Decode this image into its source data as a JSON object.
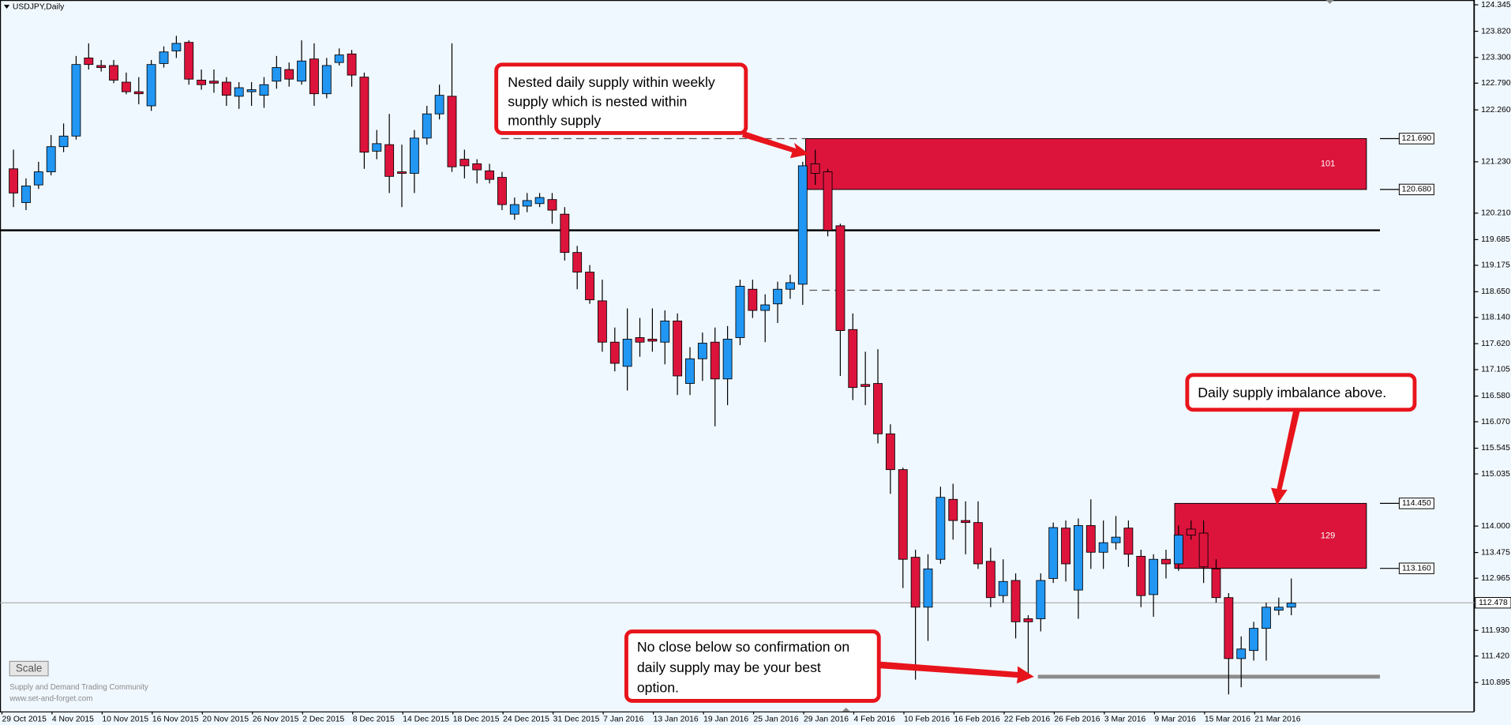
{
  "chart_data": {
    "type": "candlestick",
    "title": "USDJPY,Daily",
    "up_color": "#2196f3",
    "down_color": "#dc143c",
    "categories": [
      "29 Oct 2015",
      null,
      null,
      null,
      "4 Nov 2015",
      null,
      null,
      null,
      "10 Nov 2015",
      null,
      null,
      null,
      "16 Nov 2015",
      null,
      null,
      null,
      "20 Nov 2015",
      null,
      null,
      null,
      "26 Nov 2015",
      null,
      null,
      null,
      "2 Dec 2015",
      null,
      null,
      null,
      "8 Dec 2015",
      null,
      null,
      null,
      "14 Dec 2015",
      null,
      null,
      null,
      "18 Dec 2015",
      null,
      null,
      null,
      "24 Dec 2015",
      null,
      null,
      null,
      "31 Dec 2015",
      null,
      null,
      null,
      "7 Jan 2016",
      null,
      null,
      null,
      "13 Jan 2016",
      null,
      null,
      null,
      "19 Jan 2016",
      null,
      null,
      null,
      "25 Jan 2016",
      null,
      null,
      null,
      "29 Jan 2016",
      null,
      null,
      null,
      "4 Feb 2016",
      null,
      null,
      null,
      "10 Feb 2016",
      null,
      null,
      null,
      "16 Feb 2016",
      null,
      null,
      null,
      "22 Feb 2016",
      null,
      null,
      null,
      "26 Feb 2016",
      null,
      null,
      null,
      "3 Mar 2016",
      null,
      null,
      null,
      "9 Mar 2016",
      null,
      null,
      null,
      "15 Mar 2016",
      null,
      null,
      null,
      "21 Mar 2016",
      null,
      null
    ],
    "open": [
      121.09,
      120.42,
      120.77,
      121.03,
      121.53,
      121.74,
      123.29,
      123.14,
      123.14,
      122.81,
      122.62,
      122.34,
      123.18,
      123.43,
      123.6,
      122.85,
      122.83,
      122.81,
      122.53,
      122.62,
      122.55,
      122.83,
      123.06,
      122.83,
      123.27,
      122.58,
      123.2,
      123.37,
      122.91,
      121.44,
      121.57,
      121.03,
      121.0,
      121.7,
      122.18,
      122.53,
      121.28,
      121.19,
      121.05,
      120.92,
      120.19,
      120.35,
      120.4,
      120.48,
      120.19,
      119.43,
      119.04,
      118.47,
      117.65,
      117.17,
      117.74,
      117.71,
      117.65,
      118.07,
      116.83,
      117.32,
      117.65,
      116.92,
      117.74,
      118.7,
      118.28,
      118.41,
      118.7,
      118.8,
      121.19,
      121.03,
      119.96,
      117.9,
      116.81,
      116.83,
      115.83,
      115.12,
      113.38,
      112.39,
      113.34,
      114.53,
      114.11,
      114.07,
      113.3,
      112.62,
      112.92,
      112.16,
      112.16,
      112.96,
      113.96,
      112.73,
      114.01,
      113.48,
      113.67,
      113.96,
      113.4,
      112.64,
      113.34,
      113.25,
      113.94,
      113.86,
      113.15,
      112.58,
      111.37,
      111.53,
      111.97,
      112.33,
      112.39
    ],
    "high": [
      121.47,
      120.9,
      121.23,
      121.76,
      121.99,
      123.33,
      123.58,
      123.25,
      123.25,
      123.0,
      122.91,
      123.25,
      123.52,
      123.73,
      123.64,
      123.06,
      123.06,
      122.91,
      122.81,
      122.81,
      122.91,
      123.33,
      123.2,
      123.64,
      123.58,
      123.29,
      123.48,
      123.45,
      123.0,
      121.86,
      122.18,
      121.57,
      121.86,
      122.34,
      122.76,
      123.58,
      121.47,
      121.28,
      121.19,
      121.03,
      120.52,
      120.61,
      120.61,
      120.61,
      120.33,
      119.56,
      119.18,
      118.89,
      117.94,
      118.32,
      118.13,
      118.32,
      118.28,
      118.22,
      117.55,
      117.84,
      117.94,
      117.97,
      118.89,
      118.89,
      118.6,
      118.85,
      118.99,
      121.23,
      121.47,
      121.09,
      120.0,
      118.22,
      117.46,
      117.51,
      116.02,
      115.16,
      113.53,
      113.44,
      114.78,
      114.84,
      114.49,
      114.49,
      113.57,
      113.34,
      113.06,
      112.23,
      113.06,
      114.07,
      114.11,
      114.15,
      114.53,
      114.11,
      114.2,
      114.11,
      113.53,
      113.44,
      113.53,
      114.01,
      114.11,
      114.11,
      113.34,
      112.67,
      111.81,
      112.1,
      112.48,
      112.58,
      112.96
    ],
    "low": [
      120.33,
      120.27,
      120.69,
      120.96,
      121.42,
      121.67,
      123.06,
      123.02,
      122.79,
      122.57,
      122.37,
      122.24,
      123.1,
      123.29,
      122.76,
      122.66,
      122.6,
      122.34,
      122.28,
      122.34,
      122.3,
      122.68,
      122.72,
      122.76,
      122.34,
      122.49,
      123.14,
      122.72,
      121.09,
      121.28,
      120.61,
      120.33,
      120.61,
      121.57,
      122.07,
      121.03,
      120.9,
      120.8,
      120.8,
      120.27,
      120.08,
      120.23,
      120.33,
      120.0,
      119.27,
      118.7,
      118.41,
      117.46,
      117.07,
      116.69,
      117.36,
      117.46,
      117.21,
      116.6,
      116.6,
      116.88,
      115.98,
      116.4,
      117.59,
      118.13,
      117.65,
      118.03,
      118.51,
      118.39,
      120.77,
      119.75,
      116.98,
      116.5,
      116.4,
      115.64,
      114.64,
      112.77,
      110.95,
      111.72,
      113.25,
      113.73,
      113.44,
      113.15,
      112.39,
      112.48,
      111.77,
      111.05,
      111.91,
      112.87,
      112.9,
      112.16,
      113.15,
      113.15,
      113.53,
      113.19,
      112.39,
      112.2,
      112.96,
      113.11,
      113.73,
      112.87,
      112.48,
      110.66,
      110.8,
      111.33,
      111.33,
      112.23,
      112.23
    ],
    "close": [
      120.61,
      120.75,
      121.03,
      121.53,
      121.74,
      123.16,
      123.16,
      123.1,
      122.85,
      122.62,
      122.58,
      123.16,
      123.41,
      123.58,
      122.87,
      122.76,
      122.79,
      122.55,
      122.7,
      122.66,
      122.76,
      123.1,
      122.87,
      123.23,
      122.58,
      123.14,
      123.35,
      122.95,
      121.42,
      121.59,
      120.94,
      121.0,
      121.7,
      122.18,
      122.55,
      121.13,
      121.15,
      121.07,
      120.88,
      120.38,
      120.38,
      120.46,
      120.52,
      120.27,
      119.43,
      119.04,
      118.49,
      117.65,
      117.23,
      117.71,
      117.65,
      117.67,
      118.07,
      116.98,
      117.32,
      117.63,
      116.92,
      117.71,
      118.76,
      118.28,
      118.39,
      118.7,
      118.83,
      121.15,
      121.0,
      119.87,
      117.88,
      116.75,
      116.77,
      115.83,
      115.12,
      113.34,
      112.39,
      113.15,
      114.57,
      114.11,
      114.07,
      113.25,
      112.58,
      112.9,
      112.1,
      112.1,
      112.92,
      113.97,
      113.25,
      114.01,
      113.48,
      113.67,
      113.78,
      113.44,
      112.62,
      113.34,
      113.25,
      113.82,
      113.82,
      113.19,
      112.58,
      111.37,
      111.56,
      111.97,
      112.39,
      112.39,
      112.47
    ],
    "ylim": [
      110.32,
      124.44
    ],
    "yticks": [
      {
        "value": 124.345,
        "label": "124.345"
      },
      {
        "value": 123.82,
        "label": "123.820"
      },
      {
        "value": 123.3,
        "label": "123.300"
      },
      {
        "value": 122.79,
        "label": "122.790"
      },
      {
        "value": 122.26,
        "label": "122.260"
      },
      {
        "value": 121.23,
        "label": "121.230"
      },
      {
        "value": 120.21,
        "label": "120.210"
      },
      {
        "value": 119.685,
        "label": "119.685"
      },
      {
        "value": 119.175,
        "label": "119.175"
      },
      {
        "value": 118.65,
        "label": "118.650"
      },
      {
        "value": 118.14,
        "label": "118.140"
      },
      {
        "value": 117.62,
        "label": "117.620"
      },
      {
        "value": 117.105,
        "label": "117.105"
      },
      {
        "value": 116.58,
        "label": "116.580"
      },
      {
        "value": 116.07,
        "label": "116.070"
      },
      {
        "value": 115.545,
        "label": "115.545"
      },
      {
        "value": 115.035,
        "label": "115.035"
      },
      {
        "value": 114.0,
        "label": "114.000"
      },
      {
        "value": 113.475,
        "label": "113.475"
      },
      {
        "value": 112.965,
        "label": "112.965"
      },
      {
        "value": 111.93,
        "label": "111.930"
      },
      {
        "value": 111.42,
        "label": "111.420"
      },
      {
        "value": 110.895,
        "label": "110.895"
      }
    ],
    "current_price": {
      "value": 112.478,
      "label": "112.478"
    },
    "levels": [
      {
        "value": 119.87,
        "style": "solid"
      },
      {
        "value": 118.68,
        "style": "dashed"
      },
      {
        "value": 111.01,
        "style": "thick"
      }
    ],
    "zones": [
      {
        "top": {
          "value": 121.69,
          "label": "121.690"
        },
        "bottom": {
          "value": 120.68,
          "label": "120.680"
        },
        "text": "101"
      },
      {
        "top": {
          "value": 114.45,
          "label": "114.450"
        },
        "bottom": {
          "value": 113.16,
          "label": "113.160"
        },
        "text": "129"
      }
    ]
  },
  "annotations": [
    {
      "lines": [
        "Nested daily supply within weekly",
        "supply which is nested within",
        "monthly supply"
      ]
    },
    {
      "lines": [
        "Daily supply imbalance above."
      ]
    },
    {
      "lines": [
        "No close below so confirmation on",
        "daily supply may be your best",
        "option."
      ]
    }
  ],
  "scale_button": "Scale",
  "watermark": [
    "Supply and Demand Trading Community",
    "www.set-and-forget.com"
  ]
}
